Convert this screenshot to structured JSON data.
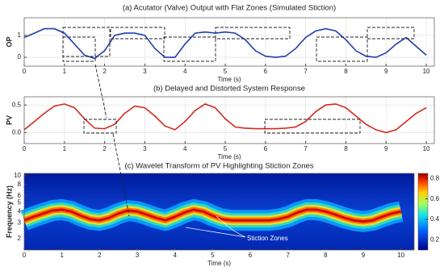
{
  "chart_data": [
    {
      "type": "line",
      "title": "(a) Acutator (Valve) Output with Flat Zones (Simulated Stiction)",
      "x_label": "Time (s)",
      "y_label": "OP",
      "x": [
        0,
        0.25,
        0.5,
        0.75,
        1,
        1.25,
        1.5,
        1.75,
        2,
        2.25,
        2.5,
        2.75,
        3,
        3.25,
        3.5,
        3.75,
        4,
        4.25,
        4.5,
        4.75,
        5,
        5.25,
        5.5,
        5.75,
        6,
        6.25,
        6.5,
        6.75,
        7,
        7.25,
        7.5,
        7.75,
        8,
        8.25,
        8.5,
        8.75,
        9,
        9.25,
        9.5,
        9.75,
        10
      ],
      "values": [
        0.9,
        1.1,
        1.3,
        1.3,
        1.1,
        0.6,
        0.1,
        -0.05,
        0.3,
        1.0,
        1.1,
        1.1,
        1.0,
        0.4,
        0.0,
        0.0,
        0.6,
        1.1,
        1.15,
        1.1,
        1.15,
        1.1,
        0.8,
        0.3,
        0.05,
        0.0,
        0.05,
        0.4,
        0.9,
        1.2,
        1.3,
        1.2,
        0.8,
        0.3,
        0.05,
        0.0,
        0.2,
        0.6,
        0.9,
        0.5,
        0.1
      ],
      "color": "#1f3fb0",
      "xlim": [
        0,
        10.2
      ],
      "xticks": [
        0,
        1,
        2,
        3,
        4,
        5,
        6,
        7,
        8,
        9,
        10
      ],
      "ylim": [
        -0.4,
        1.8
      ],
      "yticks": [
        0,
        1
      ],
      "grid": true
    },
    {
      "type": "line",
      "title": "(b) Delayed and Distorted System Response",
      "x_label": "Time (s)",
      "y_label": "PV",
      "x": [
        0,
        0.25,
        0.5,
        0.75,
        1,
        1.25,
        1.5,
        1.75,
        2,
        2.25,
        2.5,
        2.75,
        3,
        3.25,
        3.5,
        3.75,
        4,
        4.25,
        4.5,
        4.75,
        5,
        5.25,
        5.5,
        5.75,
        6,
        6.25,
        6.5,
        6.75,
        7,
        7.25,
        7.5,
        7.75,
        8,
        8.25,
        8.5,
        8.75,
        9,
        9.25,
        9.5,
        9.75,
        10
      ],
      "values": [
        0.05,
        0.2,
        0.35,
        0.48,
        0.52,
        0.45,
        0.25,
        0.08,
        0.07,
        0.15,
        0.35,
        0.48,
        0.45,
        0.3,
        0.12,
        0.05,
        0.2,
        0.4,
        0.52,
        0.45,
        0.25,
        0.1,
        0.08,
        0.07,
        0.07,
        0.07,
        0.08,
        0.1,
        0.2,
        0.38,
        0.5,
        0.52,
        0.45,
        0.3,
        0.15,
        0.05,
        0.0,
        0.05,
        0.2,
        0.35,
        0.45
      ],
      "color": "#d42a1c",
      "xlim": [
        0,
        10.2
      ],
      "xticks": [
        0,
        1,
        2,
        3,
        4,
        5,
        6,
        7,
        8,
        9,
        10
      ],
      "ylim": [
        -0.2,
        0.65
      ],
      "yticks": [
        {
          "value": 0,
          "label": "0.0"
        },
        0.5
      ],
      "grid": true
    },
    {
      "type": "spectrogram",
      "title": "(c) Wavelet Transform of PV Highlighting Stiction Zones",
      "x_label": "Time (s)",
      "y_label": "Frequency (Hz)",
      "annotation": "Stiction Zones",
      "x": [
        0,
        0.25,
        0.5,
        0.75,
        1,
        1.25,
        1.5,
        1.75,
        2,
        2.25,
        2.5,
        2.75,
        3,
        3.25,
        3.5,
        3.75,
        4,
        4.25,
        4.5,
        4.75,
        5,
        5.25,
        5.5,
        5.75,
        6,
        6.25,
        6.5,
        6.75,
        7,
        7.25,
        7.5,
        7.75,
        8,
        8.25,
        8.5,
        8.75,
        9,
        9.25,
        9.5,
        9.75,
        10
      ],
      "values": [
        3.2,
        3.5,
        3.8,
        4.1,
        4.2,
        4.0,
        3.6,
        3.3,
        3.2,
        3.4,
        3.8,
        4.1,
        4.0,
        3.7,
        3.4,
        3.2,
        3.5,
        3.9,
        4.2,
        4.0,
        3.6,
        3.3,
        3.2,
        3.2,
        3.2,
        3.2,
        3.2,
        3.3,
        3.5,
        3.9,
        4.2,
        4.2,
        4.0,
        3.7,
        3.4,
        3.2,
        3.1,
        3.2,
        3.5,
        3.8,
        4.0
      ],
      "xlim": [
        0,
        10.35
      ],
      "xticks": [
        0,
        1,
        2,
        3,
        4,
        5,
        6,
        7,
        8,
        9,
        10
      ],
      "ylim": [
        1.5,
        10.6
      ],
      "yscale": "log",
      "yticks": [
        2,
        3,
        4,
        5,
        6,
        8,
        10
      ],
      "clim": [
        0.1,
        0.85
      ],
      "cticks": [
        0.2,
        0.4,
        0.6,
        0.8
      ]
    }
  ]
}
